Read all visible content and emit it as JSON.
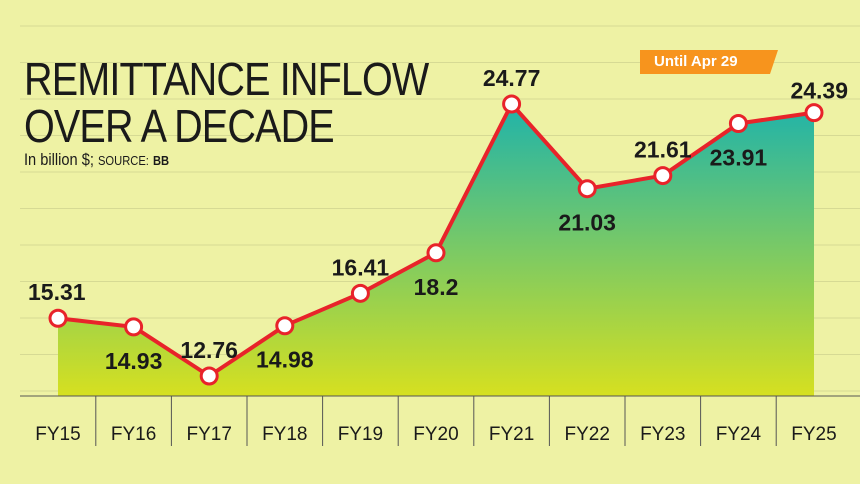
{
  "chart_data": {
    "type": "area",
    "title": "REMITTANCE INFLOW",
    "title_line2": "OVER A DECADE",
    "subtitle_unit": "In billion $;",
    "subtitle_source_label": "SOURCE:",
    "subtitle_source": "BB",
    "annotation": "Until Apr 29",
    "categories": [
      "FY15",
      "FY16",
      "FY17",
      "FY18",
      "FY19",
      "FY20",
      "FY21",
      "FY22",
      "FY23",
      "FY24",
      "FY25"
    ],
    "values": [
      15.31,
      14.93,
      12.76,
      14.98,
      16.41,
      18.2,
      24.77,
      21.03,
      21.61,
      23.91,
      24.39
    ],
    "value_labels": [
      "15.31",
      "14.93",
      "12.76",
      "14.98",
      "16.41",
      "18.2",
      "24.77",
      "21.03",
      "21.61",
      "23.91",
      "24.39"
    ],
    "ylim": [
      11.5,
      25.5
    ],
    "grid": true,
    "colors": {
      "line": "#e8232a",
      "area_top": "#1fb3aa",
      "area_bottom": "#d6e020",
      "badge": "#f7941d",
      "grid": "#d6da94"
    }
  }
}
